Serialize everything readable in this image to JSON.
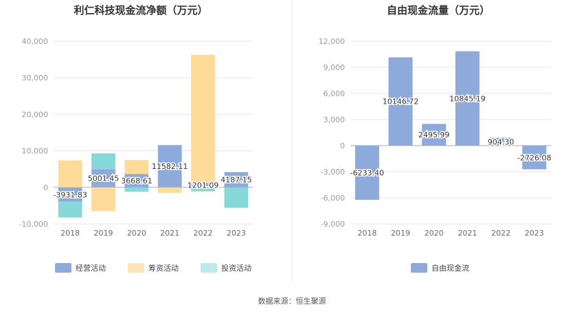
{
  "charts": {
    "left": {
      "title": "利仁科技现金流净额（万元）",
      "chart_data": {
        "type": "bar",
        "stacked": true,
        "title": "利仁科技现金流净额（万元）",
        "categories": [
          "2018",
          "2019",
          "2020",
          "2021",
          "2022",
          "2023"
        ],
        "ylim": [
          -10000,
          40000
        ],
        "yticks": [
          -10000,
          0,
          10000,
          20000,
          30000,
          40000
        ],
        "ytick_labels": [
          "-10,000",
          "0",
          "10,000",
          "20,000",
          "30,000",
          "40,000"
        ],
        "series": [
          {
            "name": "经营活动",
            "color": "#8eaadb",
            "values": [
              -3931.83,
              5001.45,
              3668.61,
              11582.11,
              1201.09,
              4187.15
            ]
          },
          {
            "name": "筹资活动",
            "color": "#ffdb9a",
            "values": [
              7400,
              -6500,
              3800,
              -1500,
              35100,
              0
            ]
          },
          {
            "name": "投资活动",
            "color": "#86d9d8",
            "values": [
              -4300,
              4300,
              -1200,
              0,
              -1100,
              -5600
            ]
          }
        ],
        "data_labels": [
          "-3931.83",
          "5001.45",
          "3668.61",
          "11582.11",
          "1201.09",
          "4187.15"
        ]
      },
      "legend": [
        {
          "label": "经营活动",
          "color": "#8eaadb"
        },
        {
          "label": "筹资活动",
          "color": "#ffe5bc"
        },
        {
          "label": "投资活动",
          "color": "#bde9e9"
        }
      ]
    },
    "right": {
      "title": "自由现金流量（万元）",
      "chart_data": {
        "type": "bar",
        "title": "自由现金流量（万元）",
        "categories": [
          "2018",
          "2019",
          "2020",
          "2021",
          "2022",
          "2023"
        ],
        "ylim": [
          -9000,
          12000
        ],
        "yticks": [
          -9000,
          -6000,
          -3000,
          0,
          3000,
          6000,
          9000,
          12000
        ],
        "ytick_labels": [
          "-9,000",
          "-6,000",
          "-3,000",
          "0",
          "3,000",
          "6,000",
          "9,000",
          "12,000"
        ],
        "series": [
          {
            "name": "自由现金流",
            "color": "#8eaadb",
            "values": [
              -6233.4,
              10146.72,
              2495.99,
              10845.19,
              904.3,
              -2726.08
            ]
          }
        ],
        "data_labels": [
          "-6233.40",
          "10146.72",
          "2495.99",
          "10845.19",
          "904.30",
          "-2726.08"
        ]
      },
      "legend": [
        {
          "label": "自由现金流",
          "color": "#8eaadb"
        }
      ]
    }
  },
  "source": "数据来源：恒生聚源"
}
